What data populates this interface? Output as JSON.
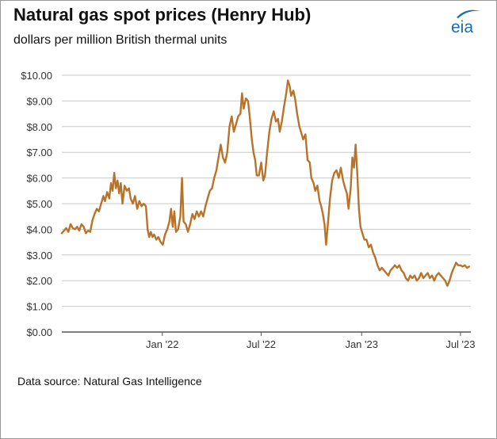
{
  "header": {
    "title": "Natural gas spot prices (Henry Hub)",
    "subtitle": "dollars per million British thermal units",
    "logo_text": "eia"
  },
  "footer": {
    "source": "Data source: Natural Gas Intelligence"
  },
  "colors": {
    "line": "#b8732b",
    "grid": "#c8c8c8",
    "axis": "#555555",
    "logo": "#1b6bb0"
  },
  "chart_data": {
    "type": "line",
    "title": "Natural gas spot prices (Henry Hub)",
    "ylabel": "dollars per million British thermal units",
    "ylim": [
      0,
      10
    ],
    "y_ticks": [
      "$0.00",
      "$1.00",
      "$2.00",
      "$3.00",
      "$4.00",
      "$5.00",
      "$6.00",
      "$7.00",
      "$8.00",
      "$9.00",
      "$10.00"
    ],
    "y_tick_values": [
      0,
      1,
      2,
      3,
      4,
      5,
      6,
      7,
      8,
      9,
      10
    ],
    "x_ticks": [
      {
        "label": "Jan '22",
        "date": "2022-01-01"
      },
      {
        "label": "Jul '22",
        "date": "2022-07-01"
      },
      {
        "label": "Jan '23",
        "date": "2023-01-01"
      },
      {
        "label": "Jul '23",
        "date": "2023-07-01"
      }
    ],
    "xlim": [
      "2021-07-01",
      "2023-07-20"
    ],
    "grid": true,
    "series": [
      {
        "points": [
          [
            "2021-07-01",
            3.85
          ],
          [
            "2021-07-05",
            3.95
          ],
          [
            "2021-07-09",
            4.05
          ],
          [
            "2021-07-13",
            3.9
          ],
          [
            "2021-07-17",
            4.2
          ],
          [
            "2021-07-21",
            4.05
          ],
          [
            "2021-07-25",
            4.0
          ],
          [
            "2021-07-29",
            4.1
          ],
          [
            "2021-08-02",
            3.95
          ],
          [
            "2021-08-06",
            4.2
          ],
          [
            "2021-08-10",
            4.1
          ],
          [
            "2021-08-14",
            3.85
          ],
          [
            "2021-08-18",
            3.95
          ],
          [
            "2021-08-22",
            3.9
          ],
          [
            "2021-08-26",
            4.35
          ],
          [
            "2021-08-30",
            4.6
          ],
          [
            "2021-09-03",
            4.8
          ],
          [
            "2021-09-07",
            4.7
          ],
          [
            "2021-09-11",
            5.0
          ],
          [
            "2021-09-15",
            5.3
          ],
          [
            "2021-09-18",
            5.1
          ],
          [
            "2021-09-22",
            5.45
          ],
          [
            "2021-09-26",
            5.2
          ],
          [
            "2021-09-29",
            5.8
          ],
          [
            "2021-10-02",
            5.5
          ],
          [
            "2021-10-05",
            6.2
          ],
          [
            "2021-10-08",
            5.6
          ],
          [
            "2021-10-11",
            5.9
          ],
          [
            "2021-10-14",
            5.4
          ],
          [
            "2021-10-17",
            5.8
          ],
          [
            "2021-10-20",
            5.0
          ],
          [
            "2021-10-24",
            5.7
          ],
          [
            "2021-10-28",
            5.5
          ],
          [
            "2021-11-01",
            5.6
          ],
          [
            "2021-11-04",
            5.2
          ],
          [
            "2021-11-08",
            5.0
          ],
          [
            "2021-11-12",
            5.3
          ],
          [
            "2021-11-16",
            4.8
          ],
          [
            "2021-11-20",
            5.1
          ],
          [
            "2021-11-24",
            4.9
          ],
          [
            "2021-11-28",
            5.0
          ],
          [
            "2021-12-02",
            4.9
          ],
          [
            "2021-12-05",
            4.0
          ],
          [
            "2021-12-08",
            3.7
          ],
          [
            "2021-12-11",
            3.9
          ],
          [
            "2021-12-14",
            3.7
          ],
          [
            "2021-12-17",
            3.8
          ],
          [
            "2021-12-21",
            3.6
          ],
          [
            "2021-12-25",
            3.7
          ],
          [
            "2021-12-29",
            3.5
          ],
          [
            "2022-01-02",
            3.4
          ],
          [
            "2022-01-06",
            3.8
          ],
          [
            "2022-01-10",
            4.0
          ],
          [
            "2022-01-14",
            4.3
          ],
          [
            "2022-01-17",
            4.8
          ],
          [
            "2022-01-20",
            4.1
          ],
          [
            "2022-01-23",
            4.7
          ],
          [
            "2022-01-26",
            3.9
          ],
          [
            "2022-01-30",
            4.0
          ],
          [
            "2022-02-03",
            4.5
          ],
          [
            "2022-02-06",
            6.0
          ],
          [
            "2022-02-09",
            4.3
          ],
          [
            "2022-02-13",
            4.2
          ],
          [
            "2022-02-17",
            3.9
          ],
          [
            "2022-02-21",
            4.2
          ],
          [
            "2022-02-25",
            4.6
          ],
          [
            "2022-03-01",
            4.4
          ],
          [
            "2022-03-05",
            4.7
          ],
          [
            "2022-03-09",
            4.5
          ],
          [
            "2022-03-13",
            4.7
          ],
          [
            "2022-03-17",
            4.5
          ],
          [
            "2022-03-21",
            4.9
          ],
          [
            "2022-03-25",
            5.2
          ],
          [
            "2022-03-29",
            5.5
          ],
          [
            "2022-04-02",
            5.6
          ],
          [
            "2022-04-06",
            6.0
          ],
          [
            "2022-04-10",
            6.3
          ],
          [
            "2022-04-14",
            6.8
          ],
          [
            "2022-04-18",
            7.3
          ],
          [
            "2022-04-22",
            6.8
          ],
          [
            "2022-04-26",
            6.6
          ],
          [
            "2022-04-30",
            7.0
          ],
          [
            "2022-05-04",
            8.0
          ],
          [
            "2022-05-08",
            8.4
          ],
          [
            "2022-05-12",
            7.8
          ],
          [
            "2022-05-16",
            8.1
          ],
          [
            "2022-05-20",
            8.4
          ],
          [
            "2022-05-24",
            8.5
          ],
          [
            "2022-05-27",
            9.3
          ],
          [
            "2022-05-30",
            8.7
          ],
          [
            "2022-06-03",
            9.1
          ],
          [
            "2022-06-07",
            9.0
          ],
          [
            "2022-06-10",
            8.4
          ],
          [
            "2022-06-14",
            7.5
          ],
          [
            "2022-06-17",
            7.0
          ],
          [
            "2022-06-20",
            6.7
          ],
          [
            "2022-06-23",
            6.1
          ],
          [
            "2022-06-27",
            6.1
          ],
          [
            "2022-07-01",
            6.6
          ],
          [
            "2022-07-05",
            5.9
          ],
          [
            "2022-07-08",
            6.1
          ],
          [
            "2022-07-12",
            7.0
          ],
          [
            "2022-07-16",
            7.8
          ],
          [
            "2022-07-20",
            8.3
          ],
          [
            "2022-07-24",
            8.6
          ],
          [
            "2022-07-28",
            8.2
          ],
          [
            "2022-08-01",
            8.3
          ],
          [
            "2022-08-04",
            7.8
          ],
          [
            "2022-08-08",
            8.2
          ],
          [
            "2022-08-12",
            8.8
          ],
          [
            "2022-08-16",
            9.3
          ],
          [
            "2022-08-19",
            9.8
          ],
          [
            "2022-08-22",
            9.6
          ],
          [
            "2022-08-25",
            9.2
          ],
          [
            "2022-08-29",
            9.4
          ],
          [
            "2022-09-01",
            9.1
          ],
          [
            "2022-09-05",
            8.5
          ],
          [
            "2022-09-09",
            8.0
          ],
          [
            "2022-09-12",
            7.8
          ],
          [
            "2022-09-16",
            7.5
          ],
          [
            "2022-09-20",
            7.7
          ],
          [
            "2022-09-24",
            6.7
          ],
          [
            "2022-09-28",
            6.6
          ],
          [
            "2022-10-01",
            6.0
          ],
          [
            "2022-10-05",
            5.8
          ],
          [
            "2022-10-08",
            5.5
          ],
          [
            "2022-10-12",
            5.7
          ],
          [
            "2022-10-16",
            5.1
          ],
          [
            "2022-10-19",
            4.9
          ],
          [
            "2022-10-22",
            4.6
          ],
          [
            "2022-10-25",
            4.2
          ],
          [
            "2022-10-28",
            3.4
          ],
          [
            "2022-11-01",
            4.4
          ],
          [
            "2022-11-04",
            5.2
          ],
          [
            "2022-11-08",
            5.9
          ],
          [
            "2022-11-12",
            6.2
          ],
          [
            "2022-11-16",
            6.3
          ],
          [
            "2022-11-20",
            6.0
          ],
          [
            "2022-11-24",
            6.4
          ],
          [
            "2022-11-28",
            5.9
          ],
          [
            "2022-12-02",
            5.6
          ],
          [
            "2022-12-05",
            5.4
          ],
          [
            "2022-12-08",
            4.8
          ],
          [
            "2022-12-12",
            5.6
          ],
          [
            "2022-12-15",
            6.8
          ],
          [
            "2022-12-18",
            6.4
          ],
          [
            "2022-12-21",
            7.3
          ],
          [
            "2022-12-24",
            6.2
          ],
          [
            "2022-12-27",
            4.8
          ],
          [
            "2022-12-30",
            4.1
          ],
          [
            "2023-01-03",
            3.8
          ],
          [
            "2023-01-06",
            3.6
          ],
          [
            "2023-01-10",
            3.6
          ],
          [
            "2023-01-14",
            3.3
          ],
          [
            "2023-01-18",
            3.4
          ],
          [
            "2023-01-22",
            3.1
          ],
          [
            "2023-01-26",
            2.9
          ],
          [
            "2023-01-30",
            2.6
          ],
          [
            "2023-02-03",
            2.4
          ],
          [
            "2023-02-07",
            2.5
          ],
          [
            "2023-02-11",
            2.4
          ],
          [
            "2023-02-15",
            2.3
          ],
          [
            "2023-02-19",
            2.2
          ],
          [
            "2023-02-23",
            2.4
          ],
          [
            "2023-02-27",
            2.5
          ],
          [
            "2023-03-03",
            2.6
          ],
          [
            "2023-03-07",
            2.5
          ],
          [
            "2023-03-11",
            2.6
          ],
          [
            "2023-03-15",
            2.4
          ],
          [
            "2023-03-19",
            2.3
          ],
          [
            "2023-03-23",
            2.1
          ],
          [
            "2023-03-27",
            2.0
          ],
          [
            "2023-03-31",
            2.2
          ],
          [
            "2023-04-04",
            2.1
          ],
          [
            "2023-04-08",
            2.2
          ],
          [
            "2023-04-12",
            2.0
          ],
          [
            "2023-04-16",
            2.1
          ],
          [
            "2023-04-20",
            2.3
          ],
          [
            "2023-04-24",
            2.1
          ],
          [
            "2023-04-28",
            2.2
          ],
          [
            "2023-05-02",
            2.3
          ],
          [
            "2023-05-06",
            2.1
          ],
          [
            "2023-05-10",
            2.2
          ],
          [
            "2023-05-14",
            2.0
          ],
          [
            "2023-05-18",
            2.2
          ],
          [
            "2023-05-22",
            2.3
          ],
          [
            "2023-05-26",
            2.2
          ],
          [
            "2023-05-30",
            2.1
          ],
          [
            "2023-06-03",
            2.0
          ],
          [
            "2023-06-07",
            1.8
          ],
          [
            "2023-06-11",
            2.0
          ],
          [
            "2023-06-15",
            2.3
          ],
          [
            "2023-06-19",
            2.5
          ],
          [
            "2023-06-23",
            2.7
          ],
          [
            "2023-06-27",
            2.6
          ],
          [
            "2023-07-01",
            2.6
          ],
          [
            "2023-07-05",
            2.55
          ],
          [
            "2023-07-09",
            2.6
          ],
          [
            "2023-07-13",
            2.5
          ],
          [
            "2023-07-17",
            2.55
          ]
        ]
      }
    ]
  }
}
